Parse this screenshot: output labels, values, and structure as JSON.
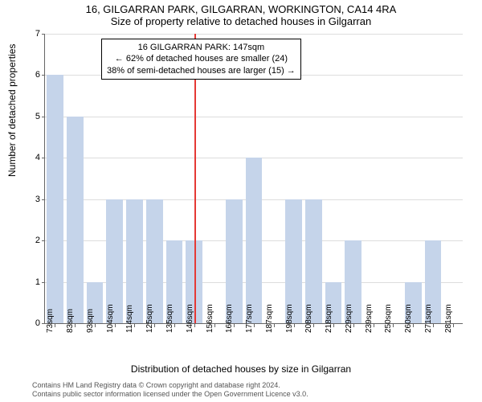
{
  "title_line1": "16, GILGARRAN PARK, GILGARRAN, WORKINGTON, CA14 4RA",
  "title_line2": "Size of property relative to detached houses in Gilgarran",
  "ylabel": "Number of detached properties",
  "xlabel": "Distribution of detached houses by size in Gilgarran",
  "chart": {
    "ylim": [
      0,
      7
    ],
    "ytick_step": 1,
    "bar_color": "#c5d4ea",
    "grid_color": "#dddddd",
    "marker_color": "#e53935",
    "marker_position": 7.5,
    "categories": [
      "73sqm",
      "83sqm",
      "93sqm",
      "104sqm",
      "114sqm",
      "125sqm",
      "135sqm",
      "146sqm",
      "156sqm",
      "166sqm",
      "177sqm",
      "187sqm",
      "198sqm",
      "208sqm",
      "218sqm",
      "229sqm",
      "239sqm",
      "250sqm",
      "260sqm",
      "271sqm",
      "281sqm"
    ],
    "values": [
      6,
      5,
      1,
      3,
      3,
      3,
      2,
      2,
      0,
      3,
      4,
      0,
      3,
      3,
      1,
      2,
      0,
      0,
      1,
      2,
      0
    ]
  },
  "annotation": {
    "line1": "16 GILGARRAN PARK: 147sqm",
    "line2": "← 62% of detached houses are smaller (24)",
    "line3": "38% of semi-detached houses are larger (15) →"
  },
  "footer": {
    "line1": "Contains HM Land Registry data © Crown copyright and database right 2024.",
    "line2": "Contains public sector information licensed under the Open Government Licence v3.0."
  }
}
